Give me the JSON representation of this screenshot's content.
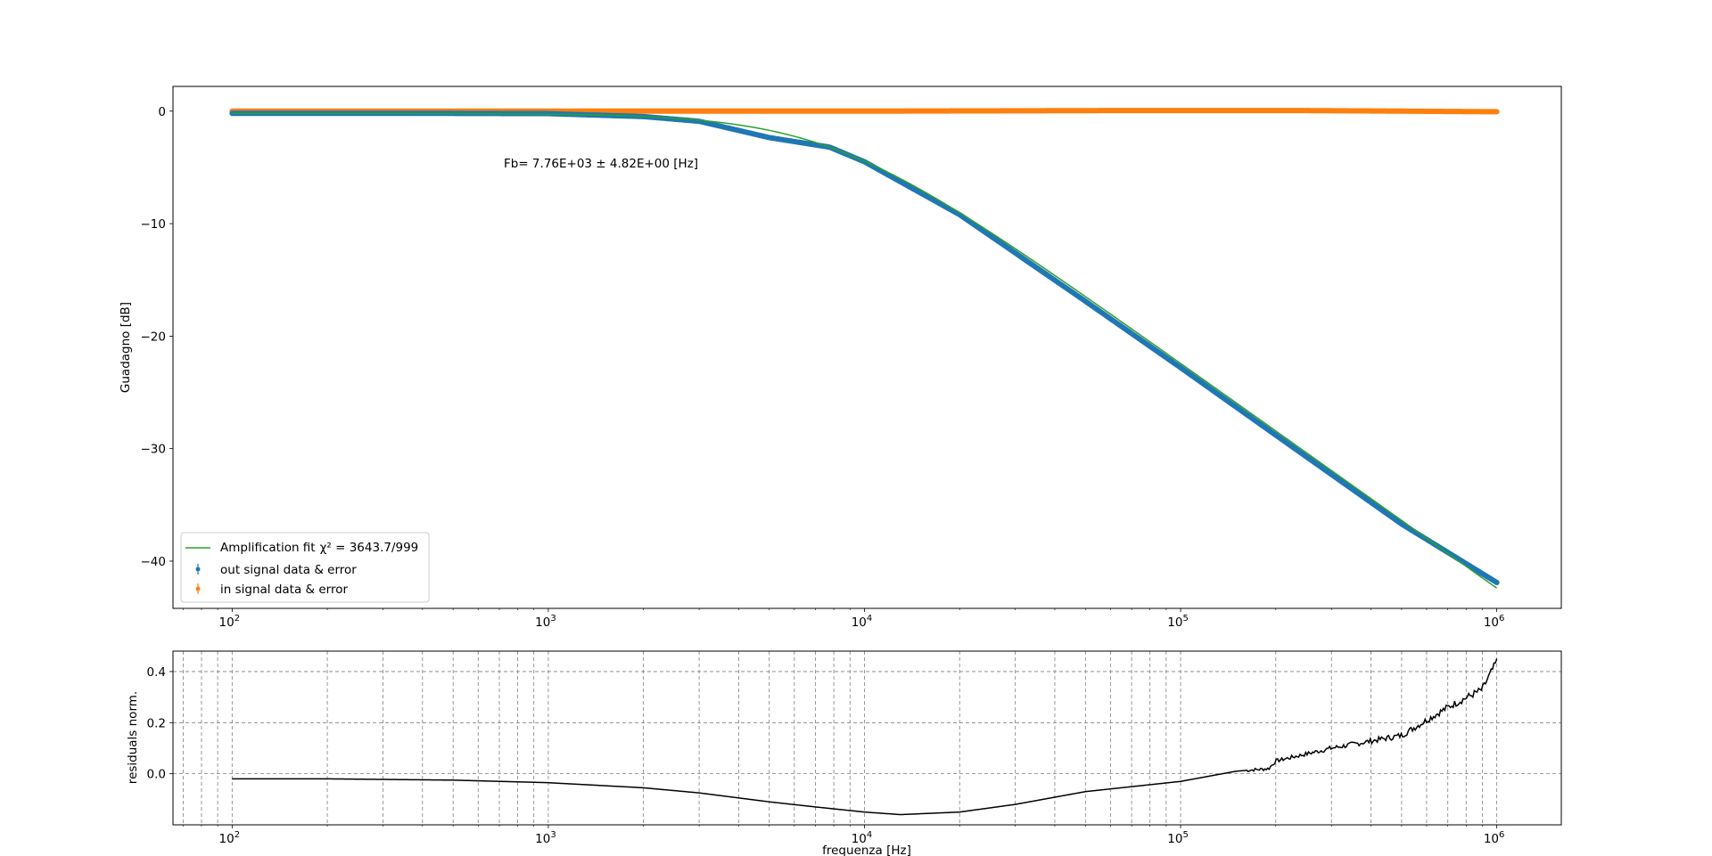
{
  "chart_data": [
    {
      "type": "line",
      "xscale": "log",
      "xlim": [
        65,
        1600000
      ],
      "ylim": [
        -44.2,
        2.2
      ],
      "xlabel": "",
      "ylabel": "Guadagno [dB]",
      "x_tick_exponents": [
        2,
        3,
        4,
        5,
        6
      ],
      "x_tick_base": "10",
      "y_ticks": [
        0,
        -10,
        -20,
        -30,
        -40
      ],
      "y_tick_labels": [
        "0",
        "−10",
        "−20",
        "−30",
        "−40"
      ],
      "annotation": "Fb= 7.76E+03 ± 4.82E+00 [Hz]",
      "legend_location": "lower-left",
      "series": [
        {
          "name": "Amplification fit",
          "legend_label": "Amplification fit",
          "legend_math": "χ² = 3643.7/999",
          "kind": "line",
          "color": "#2ca02c",
          "model": {
            "type": "lowpass",
            "fb": 7760,
            "gain_db": -0.2,
            "x_range": [
              100,
              1000000
            ]
          }
        },
        {
          "name": "out signal data & error",
          "legend_label": "out signal data & error",
          "kind": "errorbar",
          "color": "#1f77b4",
          "x": [
            100,
            200,
            500,
            1000,
            2000,
            3000,
            5000,
            7760,
            10000,
            20000,
            50000,
            100000,
            200000,
            500000,
            1000000
          ],
          "y": [
            -0.2,
            -0.2,
            -0.2,
            -0.22,
            -0.48,
            -0.9,
            -2.35,
            -3.2,
            -4.5,
            -9.2,
            -16.9,
            -22.8,
            -28.8,
            -36.7,
            -41.9
          ]
        },
        {
          "name": "in signal data & error",
          "legend_label": "in signal data & error",
          "kind": "errorbar",
          "color": "#ff7f0e",
          "x": [
            100,
            1000,
            10000,
            60000,
            100000,
            250000,
            500000,
            1000000
          ],
          "y": [
            0.0,
            0.0,
            0.0,
            0.05,
            0.05,
            0.05,
            0.0,
            -0.05
          ]
        }
      ]
    },
    {
      "type": "line",
      "xscale": "log",
      "xlim": [
        65,
        1600000
      ],
      "ylim": [
        -0.2,
        0.48
      ],
      "xlabel": "frequenza [Hz]",
      "ylabel": "residuals norm.",
      "x_tick_exponents": [
        2,
        3,
        4,
        5,
        6
      ],
      "x_tick_base": "10",
      "y_ticks": [
        0.0,
        0.2,
        0.4
      ],
      "y_tick_labels": [
        "0.0",
        "0.2",
        "0.4"
      ],
      "grid": true,
      "series": [
        {
          "name": "residuals",
          "color": "#000000",
          "x": [
            100,
            200,
            500,
            1000,
            2000,
            3000,
            5000,
            7000,
            10000,
            13000,
            20000,
            30000,
            50000,
            100000,
            150000,
            190000,
            200000,
            300000,
            500000,
            700000,
            900000,
            1000000
          ],
          "y": [
            -0.02,
            -0.02,
            -0.025,
            -0.035,
            -0.055,
            -0.075,
            -0.11,
            -0.13,
            -0.15,
            -0.16,
            -0.15,
            -0.12,
            -0.07,
            -0.03,
            0.01,
            0.02,
            0.05,
            0.1,
            0.15,
            0.26,
            0.33,
            0.44
          ]
        }
      ]
    }
  ]
}
